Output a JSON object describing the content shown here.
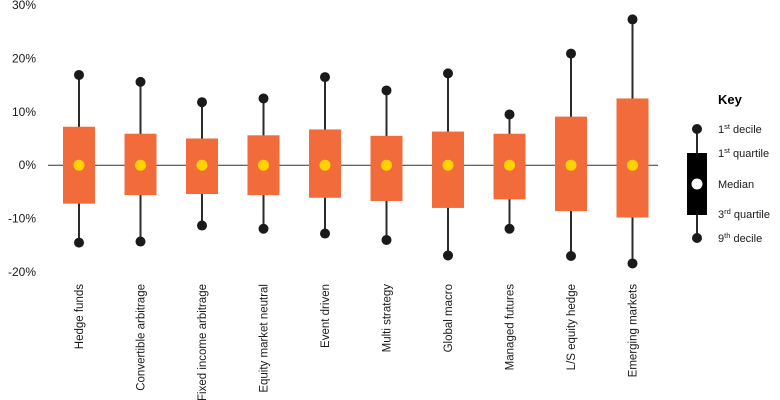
{
  "chart_data": {
    "type": "boxplot",
    "title": "",
    "xlabel": "",
    "ylabel": "",
    "ylim": [
      -20,
      30
    ],
    "y_ticks": [
      30,
      20,
      10,
      0,
      -10,
      -20
    ],
    "y_tick_labels": [
      "30%",
      "20%",
      "10%",
      "0%",
      "-10%",
      "-20%"
    ],
    "zero_line": true,
    "grid": false,
    "categories": [
      "Hedge funds",
      "Convertible arbitrage",
      "Fixed income arbitrage",
      "Equity market neutral",
      "Event driven",
      "Multi strategy",
      "Global macro",
      "Managed futures",
      "L/S equity hedge",
      "Emerging markets"
    ],
    "series": [
      {
        "decile_1": 16.9,
        "quartile_1": 7.2,
        "median": 0,
        "quartile_3": -7.2,
        "decile_9": -14.5
      },
      {
        "decile_1": 15.6,
        "quartile_1": 5.9,
        "median": 0,
        "quartile_3": -5.6,
        "decile_9": -14.3
      },
      {
        "decile_1": 11.8,
        "quartile_1": 5.0,
        "median": 0,
        "quartile_3": -5.4,
        "decile_9": -11.3
      },
      {
        "decile_1": 12.5,
        "quartile_1": 5.6,
        "median": 0,
        "quartile_3": -5.6,
        "decile_9": -11.9
      },
      {
        "decile_1": 16.5,
        "quartile_1": 6.7,
        "median": 0,
        "quartile_3": -6.1,
        "decile_9": -12.8
      },
      {
        "decile_1": 14.0,
        "quartile_1": 5.5,
        "median": 0,
        "quartile_3": -6.7,
        "decile_9": -14.0
      },
      {
        "decile_1": 17.2,
        "quartile_1": 6.3,
        "median": 0,
        "quartile_3": -8.0,
        "decile_9": -16.9
      },
      {
        "decile_1": 9.5,
        "quartile_1": 5.9,
        "median": 0,
        "quartile_3": -6.4,
        "decile_9": -11.9
      },
      {
        "decile_1": 20.9,
        "quartile_1": 9.1,
        "median": 0,
        "quartile_3": -8.6,
        "decile_9": -17.0
      },
      {
        "decile_1": 27.3,
        "quartile_1": 12.5,
        "median": 0,
        "quartile_3": -9.8,
        "decile_9": -18.4
      }
    ],
    "colors": {
      "box": "#f26b3a",
      "median": "#ffd200",
      "whisker": "#2b2b2b",
      "dot": "#1a1a1a",
      "key_box": "#000000",
      "key_median": "#ffffff"
    },
    "legend": {
      "title": "Key",
      "placement": "right",
      "entries": [
        {
          "base": "1",
          "sup": "st",
          "rest": " decile"
        },
        {
          "base": "1",
          "sup": "st",
          "rest": " quartile"
        },
        {
          "base": "Median",
          "sup": "",
          "rest": ""
        },
        {
          "base": "3",
          "sup": "rd",
          "rest": " quartile"
        },
        {
          "base": "9",
          "sup": "th",
          "rest": " decile"
        }
      ]
    }
  }
}
